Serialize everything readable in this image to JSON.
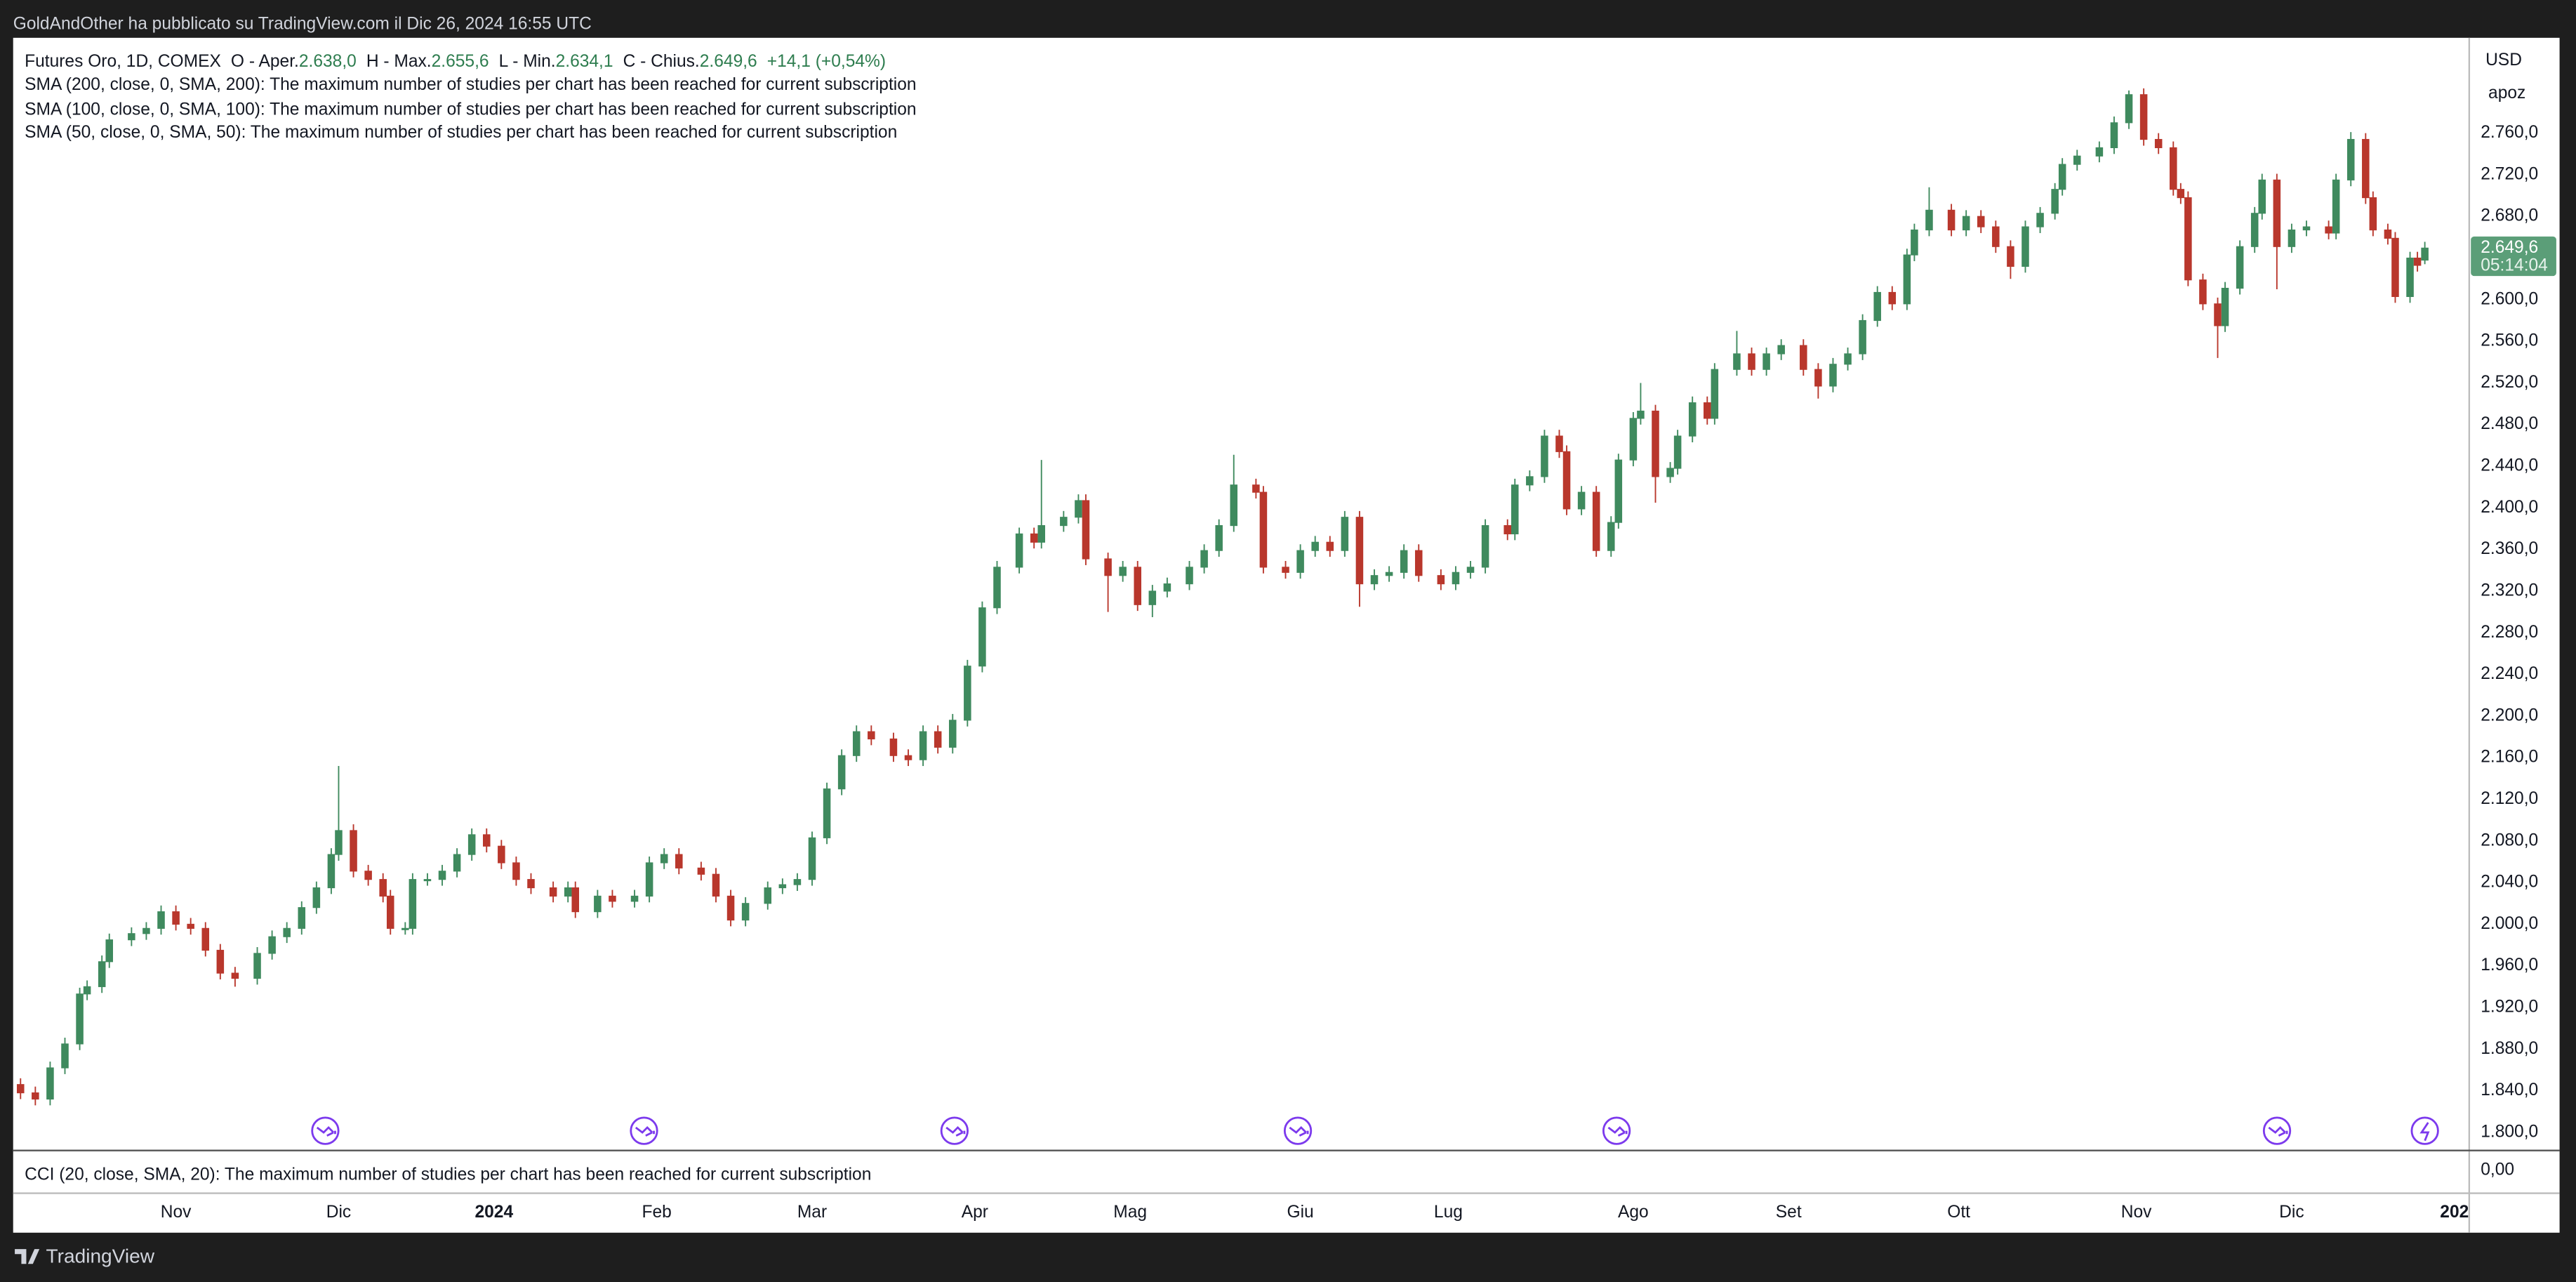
{
  "page": {
    "header": "GoldAndOther ha pubblicato su TradingView.com il Dic 26, 2024 16:55 UTC",
    "symbol": "Futures Oro, 1D, COMEX",
    "ohlc": [
      {
        "label": "O - Aper.",
        "value": "2.638,0"
      },
      {
        "label": "H - Max.",
        "value": "2.655,6"
      },
      {
        "label": "L - Min.",
        "value": "2.634,1"
      },
      {
        "label": "C - Chius.",
        "value": "2.649,6"
      }
    ],
    "change": "+14,1 (+0,54%)",
    "studies": [
      "SMA (200, close, 0, SMA, 200): The maximum number of studies per chart has been reached for current subscription",
      "SMA (100, close, 0, SMA, 100): The maximum number of studies per chart has been reached for current subscription",
      "SMA (50, close, 0, SMA, 50): The maximum number of studies per chart has been reached for current subscription"
    ],
    "cci": "CCI (20, close, SMA, 20): The maximum number of studies per chart has been reached for current subscription",
    "cci_axis_label": "0,00",
    "currency": "USD",
    "axis_mode": "apoz",
    "last_price": "2.649,6",
    "countdown": "05:14:04",
    "brand": "TradingView"
  },
  "chart_data": {
    "type": "candlestick",
    "up_color": "#3f8a5e",
    "down_color": "#b9372c",
    "xlim": [
      0,
      332
    ],
    "ylim": [
      1782.6,
      2851.6
    ],
    "xticks": [
      {
        "value": 22,
        "label": "Nov"
      },
      {
        "value": 44,
        "label": "Dic"
      },
      {
        "value": 65,
        "label": "2024"
      },
      {
        "value": 87,
        "label": "Feb"
      },
      {
        "value": 108,
        "label": "Mar"
      },
      {
        "value": 130,
        "label": "Apr"
      },
      {
        "value": 151,
        "label": "Mag"
      },
      {
        "value": 174,
        "label": "Giu"
      },
      {
        "value": 194,
        "label": "Lug"
      },
      {
        "value": 219,
        "label": "Ago"
      },
      {
        "value": 240,
        "label": "Set"
      },
      {
        "value": 263,
        "label": "Ott"
      },
      {
        "value": 287,
        "label": "Nov"
      },
      {
        "value": 308,
        "label": "Dic"
      },
      {
        "value": 330,
        "label": "202"
      }
    ],
    "yticks": [
      {
        "value": 1800,
        "label": "1.800,0"
      },
      {
        "value": 1840,
        "label": "1.840,0"
      },
      {
        "value": 1880,
        "label": "1.880,0"
      },
      {
        "value": 1920,
        "label": "1.920,0"
      },
      {
        "value": 1960,
        "label": "1.960,0"
      },
      {
        "value": 2000,
        "label": "2.000,0"
      },
      {
        "value": 2040,
        "label": "2.040,0"
      },
      {
        "value": 2080,
        "label": "2.080,0"
      },
      {
        "value": 2120,
        "label": "2.120,0"
      },
      {
        "value": 2160,
        "label": "2.160,0"
      },
      {
        "value": 2200,
        "label": "2.200,0"
      },
      {
        "value": 2240,
        "label": "2.240,0"
      },
      {
        "value": 2280,
        "label": "2.280,0"
      },
      {
        "value": 2320,
        "label": "2.320,0"
      },
      {
        "value": 2360,
        "label": "2.360,0"
      },
      {
        "value": 2400,
        "label": "2.400,0"
      },
      {
        "value": 2440,
        "label": "2.440,0"
      },
      {
        "value": 2480,
        "label": "2.480,0"
      },
      {
        "value": 2520,
        "label": "2.520,0"
      },
      {
        "value": 2560,
        "label": "2.560,0"
      },
      {
        "value": 2600,
        "label": "2.600,0"
      },
      {
        "value": 2640,
        "label": "2.640,0"
      },
      {
        "value": 2680,
        "label": "2.680,0"
      },
      {
        "value": 2720,
        "label": "2.720,0"
      },
      {
        "value": 2760,
        "label": "2.760,0"
      }
    ],
    "x": [
      1,
      3,
      5,
      7,
      9,
      10,
      12,
      13,
      16,
      18,
      20,
      22,
      24,
      26,
      28,
      30,
      33,
      35,
      37,
      39,
      41,
      43,
      44,
      46,
      48,
      50,
      51,
      53,
      54,
      56,
      58,
      60,
      62,
      64,
      66,
      68,
      70,
      73,
      75,
      76,
      79,
      81,
      84,
      86,
      88,
      90,
      93,
      95,
      97,
      99,
      102,
      104,
      106,
      108,
      110,
      112,
      114,
      116,
      119,
      121,
      123,
      125,
      127,
      129,
      131,
      133,
      136,
      138,
      139,
      142,
      144,
      145,
      148,
      150,
      152,
      154,
      156,
      159,
      161,
      163,
      165,
      168,
      169,
      172,
      174,
      176,
      178,
      180,
      182,
      184,
      186,
      188,
      190,
      193,
      195,
      197,
      199,
      202,
      203,
      205,
      207,
      209,
      210,
      212,
      214,
      216,
      217,
      219,
      220,
      222,
      224,
      225,
      227,
      229,
      230,
      233,
      235,
      237,
      239,
      242,
      244,
      246,
      248,
      250,
      252,
      254,
      256,
      257,
      259,
      262,
      264,
      266,
      268,
      270,
      272,
      274,
      276,
      277,
      279,
      282,
      284,
      286,
      288,
      290,
      292,
      293,
      294,
      296,
      298,
      299,
      301,
      303,
      304,
      306,
      308,
      310,
      313,
      314,
      316,
      318,
      319,
      321,
      322,
      324,
      325,
      326
    ],
    "open": [
      1846,
      1838,
      1832,
      1862,
      1885,
      1933,
      1940,
      1964,
      1985,
      1991,
      1996,
      2012,
      2000,
      1996,
      1975,
      1953,
      1948,
      1972,
      1988,
      1996,
      2016,
      2035,
      2067,
      2090,
      2051,
      2043,
      2027,
      1996,
      1996,
      2043,
      2043,
      2051,
      2067,
      2086,
      2075,
      2059,
      2043,
      2035,
      2027,
      2035,
      2012,
      2027,
      2022,
      2027,
      2059,
      2067,
      2054,
      2048,
      2027,
      2004,
      2020,
      2035,
      2038,
      2043,
      2083,
      2130,
      2162,
      2185,
      2178,
      2162,
      2158,
      2185,
      2170,
      2196,
      2248,
      2304,
      2343,
      2375,
      2367,
      2383,
      2391,
      2407,
      2351,
      2335,
      2343,
      2307,
      2320,
      2327,
      2343,
      2359,
      2383,
      2422,
      2415,
      2343,
      2338,
      2359,
      2367,
      2359,
      2391,
      2327,
      2335,
      2338,
      2359,
      2335,
      2327,
      2338,
      2343,
      2383,
      2375,
      2422,
      2430,
      2469,
      2454,
      2399,
      2415,
      2359,
      2386,
      2446,
      2486,
      2493,
      2430,
      2438,
      2469,
      2501,
      2486,
      2533,
      2548,
      2533,
      2548,
      2556,
      2533,
      2517,
      2538,
      2548,
      2580,
      2607,
      2596,
      2643,
      2667,
      2686,
      2667,
      2680,
      2670,
      2651,
      2632,
      2670,
      2683,
      2706,
      2730,
      2738,
      2746,
      2770,
      2797,
      2754,
      2746,
      2706,
      2698,
      2619,
      2596,
      2575,
      2611,
      2651,
      2683,
      2715,
      2651,
      2667,
      2670,
      2664,
      2715,
      2754,
      2698,
      2667,
      2659,
      2603,
      2640,
      2638
    ],
    "high": [
      1852,
      1844,
      1868,
      1891,
      1939,
      1946,
      1970,
      1991,
      1997,
      2002,
      2018,
      2018,
      2006,
      2002,
      1981,
      1959,
      1978,
      1994,
      2002,
      2022,
      2041,
      2073,
      2152,
      2096,
      2057,
      2049,
      2033,
      2002,
      2049,
      2049,
      2057,
      2073,
      2092,
      2092,
      2081,
      2065,
      2049,
      2041,
      2041,
      2041,
      2033,
      2033,
      2033,
      2065,
      2073,
      2073,
      2060,
      2054,
      2033,
      2026,
      2041,
      2044,
      2049,
      2089,
      2136,
      2168,
      2191,
      2191,
      2184,
      2168,
      2191,
      2191,
      2202,
      2254,
      2310,
      2349,
      2381,
      2381,
      2446,
      2397,
      2413,
      2413,
      2357,
      2349,
      2349,
      2326,
      2333,
      2349,
      2365,
      2389,
      2451,
      2428,
      2421,
      2349,
      2365,
      2373,
      2373,
      2397,
      2397,
      2341,
      2344,
      2365,
      2365,
      2341,
      2344,
      2349,
      2389,
      2389,
      2428,
      2436,
      2475,
      2475,
      2460,
      2421,
      2421,
      2392,
      2452,
      2492,
      2520,
      2499,
      2444,
      2475,
      2507,
      2507,
      2539,
      2570,
      2554,
      2554,
      2562,
      2562,
      2539,
      2544,
      2554,
      2586,
      2613,
      2613,
      2649,
      2673,
      2708,
      2692,
      2686,
      2686,
      2676,
      2657,
      2676,
      2689,
      2712,
      2736,
      2744,
      2752,
      2776,
      2801,
      2803,
      2760,
      2752,
      2712,
      2704,
      2625,
      2602,
      2617,
      2657,
      2689,
      2721,
      2721,
      2673,
      2676,
      2676,
      2721,
      2761,
      2760,
      2704,
      2673,
      2665,
      2646,
      2646,
      2655.6
    ],
    "low": [
      1832,
      1826,
      1826,
      1856,
      1879,
      1927,
      1934,
      1958,
      1979,
      1985,
      1990,
      1994,
      1990,
      1969,
      1947,
      1940,
      1942,
      1966,
      1982,
      1990,
      2010,
      2029,
      2061,
      2045,
      2037,
      2021,
      1990,
      1990,
      1990,
      2037,
      2037,
      2045,
      2061,
      2069,
      2053,
      2037,
      2029,
      2021,
      2021,
      2006,
      2006,
      2016,
      2016,
      2021,
      2053,
      2048,
      2042,
      2021,
      1998,
      1998,
      2014,
      2029,
      2032,
      2037,
      2077,
      2124,
      2156,
      2172,
      2156,
      2152,
      2152,
      2164,
      2164,
      2190,
      2242,
      2298,
      2337,
      2361,
      2361,
      2377,
      2385,
      2345,
      2300,
      2329,
      2301,
      2295,
      2314,
      2321,
      2337,
      2353,
      2377,
      2409,
      2337,
      2332,
      2332,
      2353,
      2353,
      2353,
      2305,
      2321,
      2329,
      2332,
      2329,
      2321,
      2321,
      2332,
      2337,
      2369,
      2369,
      2416,
      2424,
      2448,
      2393,
      2393,
      2353,
      2353,
      2380,
      2440,
      2480,
      2405,
      2424,
      2432,
      2463,
      2480,
      2480,
      2527,
      2527,
      2527,
      2542,
      2527,
      2505,
      2511,
      2532,
      2542,
      2574,
      2590,
      2590,
      2637,
      2661,
      2661,
      2661,
      2664,
      2645,
      2620,
      2626,
      2664,
      2677,
      2700,
      2724,
      2732,
      2740,
      2764,
      2748,
      2740,
      2700,
      2692,
      2613,
      2590,
      2544,
      2569,
      2605,
      2645,
      2677,
      2610,
      2645,
      2661,
      2658,
      2658,
      2709,
      2692,
      2661,
      2653,
      2597,
      2597,
      2627,
      2634.1
    ],
    "close": [
      1838,
      1832,
      1862,
      1885,
      1933,
      1940,
      1964,
      1985,
      1991,
      1996,
      2012,
      2000,
      1996,
      1975,
      1953,
      1948,
      1972,
      1988,
      1996,
      2016,
      2035,
      2067,
      2090,
      2051,
      2043,
      2027,
      1996,
      1996,
      2043,
      2043,
      2051,
      2067,
      2086,
      2075,
      2059,
      2043,
      2035,
      2027,
      2035,
      2012,
      2027,
      2022,
      2027,
      2059,
      2067,
      2054,
      2048,
      2027,
      2004,
      2020,
      2035,
      2038,
      2043,
      2083,
      2130,
      2162,
      2185,
      2178,
      2162,
      2158,
      2185,
      2170,
      2196,
      2248,
      2304,
      2343,
      2375,
      2367,
      2383,
      2391,
      2407,
      2351,
      2335,
      2343,
      2307,
      2320,
      2327,
      2343,
      2359,
      2383,
      2422,
      2415,
      2343,
      2338,
      2359,
      2367,
      2359,
      2391,
      2327,
      2335,
      2338,
      2359,
      2335,
      2327,
      2338,
      2343,
      2383,
      2375,
      2422,
      2430,
      2469,
      2454,
      2399,
      2415,
      2359,
      2386,
      2446,
      2486,
      2493,
      2430,
      2438,
      2469,
      2501,
      2486,
      2533,
      2548,
      2533,
      2548,
      2556,
      2533,
      2517,
      2538,
      2548,
      2580,
      2607,
      2596,
      2643,
      2667,
      2686,
      2667,
      2680,
      2670,
      2651,
      2632,
      2670,
      2683,
      2706,
      2730,
      2738,
      2746,
      2770,
      2797,
      2754,
      2746,
      2706,
      2698,
      2619,
      2596,
      2575,
      2611,
      2651,
      2683,
      2715,
      2651,
      2667,
      2670,
      2664,
      2715,
      2754,
      2698,
      2667,
      2659,
      2603,
      2640,
      2633,
      2649.6
    ]
  }
}
